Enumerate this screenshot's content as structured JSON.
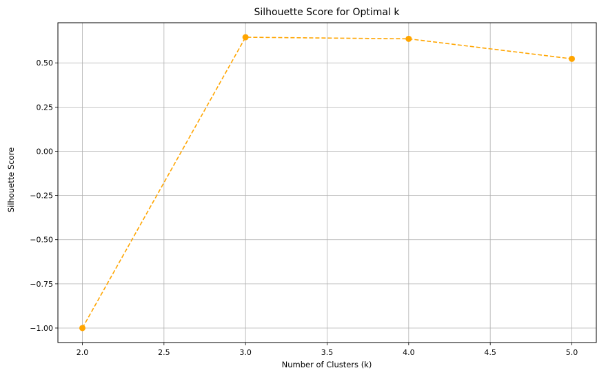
{
  "chart_data": {
    "type": "line",
    "title": "Silhouette Score for Optimal k",
    "xlabel": "Number of Clusters (k)",
    "ylabel": "Silhouette Score",
    "x": [
      2,
      3,
      4,
      5
    ],
    "series": [
      {
        "values": [
          -1.0,
          0.645,
          0.636,
          0.523
        ],
        "color": "#ffa500",
        "line_style": "dashed",
        "marker": "circle"
      }
    ],
    "xlim": [
      1.85,
      5.15
    ],
    "ylim": [
      -1.082,
      0.727
    ],
    "x_ticks": [
      {
        "value": 2.0,
        "label": "2.0"
      },
      {
        "value": 2.5,
        "label": "2.5"
      },
      {
        "value": 3.0,
        "label": "3.0"
      },
      {
        "value": 3.5,
        "label": "3.5"
      },
      {
        "value": 4.0,
        "label": "4.0"
      },
      {
        "value": 4.5,
        "label": "4.5"
      },
      {
        "value": 5.0,
        "label": "5.0"
      }
    ],
    "y_ticks": [
      {
        "value": -1.0,
        "label": "−1.00"
      },
      {
        "value": -0.75,
        "label": "−0.75"
      },
      {
        "value": -0.5,
        "label": "−0.50"
      },
      {
        "value": -0.25,
        "label": "−0.25"
      },
      {
        "value": 0.0,
        "label": "0.00"
      },
      {
        "value": 0.25,
        "label": "0.25"
      },
      {
        "value": 0.5,
        "label": "0.50"
      }
    ],
    "grid": true,
    "legend": "none"
  }
}
